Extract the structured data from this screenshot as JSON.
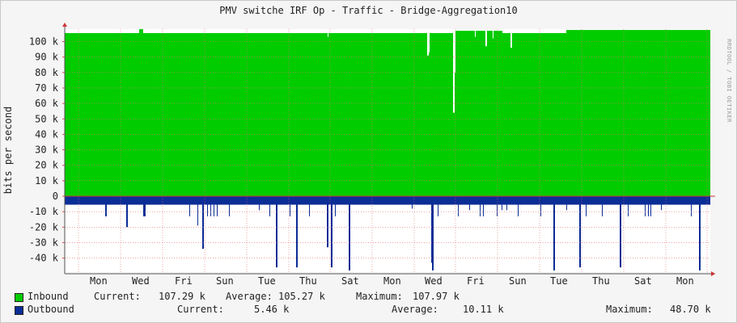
{
  "title": "PMV switche IRF Op - Traffic - Bridge-Aggregation10",
  "watermark": "RRDTOOL / TOBI OETIKER",
  "colors": {
    "inbound": "#00cc00",
    "outbound": "#0b2d96",
    "grid": "#e07070",
    "background": "#f5f5f5",
    "plot_bg": "#ffffff"
  },
  "legend": {
    "inbound": {
      "label": "Inbound",
      "current_label": "Current:",
      "current": "107.29 k",
      "average_label": "Average:",
      "average": "105.27 k",
      "maximum_label": "Maximum:",
      "maximum": "107.97 k"
    },
    "outbound": {
      "label": "Outbound",
      "current_label": "Current:",
      "current": "5.46 k",
      "average_label": "Average:",
      "average": "10.11 k",
      "maximum_label": "Maximum:",
      "maximum": "48.70 k"
    }
  },
  "chart_data": {
    "type": "area",
    "title": "PMV switche IRF Op - Traffic - Bridge-Aggregation10",
    "ylabel": "bits per second",
    "ylim": [
      -48,
      108
    ],
    "yticks": [
      -40,
      -30,
      -20,
      -10,
      0,
      10,
      20,
      30,
      40,
      50,
      60,
      70,
      80,
      90,
      100
    ],
    "ytick_labels": [
      "-40 k",
      "-30 k",
      "-20 k",
      "-10 k",
      "0",
      "10 k",
      "20 k",
      "30 k",
      "40 k",
      "50 k",
      "60 k",
      "70 k",
      "80 k",
      "90 k",
      "100 k"
    ],
    "xtick_labels": [
      "Mon",
      "Wed",
      "Fri",
      "Sun",
      "Tue",
      "Thu",
      "Sat",
      "Mon",
      "Wed",
      "Fri",
      "Sun",
      "Tue",
      "Thu",
      "Sat",
      "Mon"
    ],
    "grid": true,
    "series": [
      {
        "name": "Inbound",
        "values": [
          105.5,
          105.5,
          105.5,
          105.5,
          105.5,
          105.5,
          105.5,
          105.5,
          105.5,
          105.5,
          105.5,
          105.5,
          105.5,
          105.5,
          105.5,
          105.5,
          105.5,
          105.5,
          105.5,
          105.5,
          105.5,
          105.5,
          105.5,
          105.5,
          105.5,
          105.5,
          105.5,
          105.5,
          105.5,
          105.5,
          105.5,
          105.5,
          105.5,
          105.5,
          105.5,
          105.5,
          105.5,
          105.5,
          105.5,
          105.5,
          105.5,
          105.5,
          105.5,
          105.5,
          105.5,
          105.5,
          105.5,
          105.5,
          105.5,
          105.5,
          105.5,
          105.5,
          105.5,
          105.5,
          105.5,
          105.5,
          105.5,
          105.5,
          105.5,
          105.5,
          105.5,
          105.5,
          105.5,
          105.5,
          105.5,
          105.5,
          105.5,
          105.5,
          105.5,
          105.5,
          105.5,
          105.5,
          105.5,
          105.5,
          105.5,
          105.5,
          105.5,
          105.5,
          105.5,
          105.5,
          105.5,
          105.5,
          105.5,
          105.5,
          105.5,
          105.5,
          105.5,
          105.5,
          105.5,
          105.5,
          105.5,
          105.5,
          105.5,
          105.5,
          105.5,
          105.5,
          105.5,
          105.5,
          105.5,
          105.5,
          105.5,
          105.5,
          105.5,
          105.5,
          105.5,
          105.5,
          105.5,
          105.5,
          105.5,
          105.5,
          105.5,
          105.5,
          105.5,
          105.5,
          105.5,
          105.5,
          105.5,
          105.5,
          105.5,
          105.5,
          105.5,
          105.5,
          105.5,
          105.5,
          105.5,
          105.5,
          105.5,
          105.5,
          105.5,
          105.5,
          105.5,
          105.5,
          105.5,
          105.5,
          105.5,
          105.5,
          105.5,
          105.5,
          105.5,
          105.5,
          105.5,
          105.5,
          105.5,
          105.5,
          105.5,
          105.5,
          105.5,
          105.5,
          105.5,
          105.5,
          105.5,
          105.5,
          105.5,
          105.5,
          105.5,
          105.5,
          105.5,
          105.5,
          105.5,
          105.5,
          105.5,
          105.5,
          105.5,
          105.5,
          105.5,
          105.5,
          105.5,
          105.5,
          105.5,
          105.5,
          105.5,
          105.5,
          105.5,
          105.5,
          105.5,
          105.5,
          105.5,
          105.5,
          105.5,
          105.5,
          105.5,
          105.5,
          105.5,
          105.5,
          105.5,
          105.5,
          105.5,
          105.5,
          105.5,
          105.5,
          105.5,
          105.5,
          105.5,
          105.5,
          105.5,
          105.5,
          105.5,
          105.5,
          105.5,
          105.5,
          105.5,
          105.5,
          105.5,
          105.5,
          105.5,
          105.5,
          105.5,
          105.5,
          105.5,
          105.5,
          105.5,
          105.5,
          105.5,
          105.5,
          105.5,
          105.5,
          105.5,
          105.5,
          105.5,
          105.5,
          105.5,
          105.5,
          105.5,
          105.5,
          105.5,
          105.5,
          105.5,
          105.5,
          105.5,
          105.5,
          105.5,
          105.5,
          105.5,
          105.5,
          105.5,
          105.5,
          105.5,
          105.5,
          105.5,
          105.5,
          105.5,
          105.5,
          105.5,
          105.5,
          105.5,
          105.5,
          105.5,
          105.5,
          105.5,
          105.5,
          105.5,
          105.5,
          105.5,
          105.5,
          105.5,
          105.5,
          105.5,
          105.5,
          105.5,
          105.5,
          105.5,
          105.5,
          105.5,
          105.5,
          105.5,
          105.5,
          105.5,
          105.5,
          105.5,
          105.5,
          105.5,
          105.5,
          105.5,
          105.5,
          105.5,
          105.5,
          105.5,
          105.5,
          105.5,
          105.5,
          105.5,
          105.5,
          105.5,
          105.5,
          105.5,
          105.5,
          105.5,
          105.5,
          105.5,
          105.5,
          105.5,
          105.5,
          105.5,
          105.5,
          105.5,
          105.5,
          105.5,
          105.5,
          105.5,
          105.5,
          105.5,
          105.5,
          105.5,
          105.5,
          105.5,
          105.5,
          105.5,
          105.5,
          105.5,
          105.5,
          105.5,
          105.5,
          105.5,
          105.5,
          105.5,
          105.5,
          105.5,
          105.5,
          105.5,
          105.5,
          105.5,
          105.5,
          105.5,
          105.5,
          105.5,
          105.5,
          105.5,
          105.5,
          105.5,
          105.5,
          105.5,
          105.5,
          105.5,
          105.5,
          105.5,
          105.5,
          105.5,
          105.5,
          105.5,
          105.5,
          105.5,
          105.5,
          105.5,
          105.5,
          105.5,
          105.5,
          105.5,
          105.5,
          105.5,
          105.5,
          105.5,
          105.5,
          105.5,
          105.5,
          105.5,
          105.5,
          105.5,
          105.5,
          105.5,
          105.5,
          105.5,
          105.5,
          105.5,
          105.5,
          105.5,
          105.5,
          105.5,
          105.5,
          105.5,
          105.5,
          105.5,
          105.5,
          105.5,
          105.5,
          105.5,
          105.5,
          105.5,
          105.5,
          105.5,
          105.5,
          105.5,
          105.5,
          105.5,
          105.5,
          105.5,
          105.5,
          105.5,
          105.5,
          105.5,
          105.5,
          105.5,
          105.5,
          105.5,
          105.5,
          105.5,
          105.5,
          105.5,
          105.5,
          105.5,
          105.5,
          105.5,
          105.5,
          105.5,
          105.5,
          105.5,
          105.5,
          105.5,
          105.5,
          105.5,
          105.5,
          105.5,
          105.5,
          105.5,
          105.5,
          105.5,
          105.5,
          105.5,
          105.5,
          105.5,
          105.5,
          105.5,
          105.5,
          105.5,
          105.5,
          105.5,
          105.5,
          105.5,
          105.5,
          105.5,
          105.5,
          105.5,
          105.5,
          105.5,
          105.5,
          105.5,
          105.5,
          105.5,
          105.5,
          105.5,
          105.5,
          105.5,
          105.5,
          105.5,
          105.5,
          105.5,
          105.5,
          105.5,
          105.5,
          105.5,
          105.5,
          105.5,
          105.5,
          105.5,
          105.5,
          105.5,
          105.5,
          105.5,
          105.5,
          105.5,
          105.5,
          105.5,
          105.5,
          105.5,
          105.5,
          105.5,
          105.5,
          105.5,
          105.5,
          105.5,
          105.5,
          105.5,
          105.5,
          105.5,
          105.5,
          105.5,
          105.5,
          105.5,
          105.5,
          105.5,
          105.5,
          105.5,
          105.5,
          105.5,
          105.5,
          105.5,
          105.5,
          105.5,
          105.5,
          105.5,
          105.5,
          105.5,
          105.5,
          105.5,
          105.5,
          105.5,
          105.5,
          105.5,
          105.5,
          105.5,
          105.5,
          105.5,
          105.5,
          105.5,
          105.5,
          105.5,
          105.5,
          105.5,
          105.5,
          105.5,
          105.5,
          105.5,
          105.5,
          105.5,
          105.5,
          105.5,
          105.5,
          105.5,
          105.5,
          105.5,
          105.5,
          105.5,
          105.5,
          105.5,
          105.5,
          105.5,
          105.5,
          105.5,
          105.5,
          105.5,
          105.5,
          105.5,
          105.5,
          105.5,
          105.5,
          105.5,
          105.5,
          105.5,
          105.5,
          105.5,
          105.5,
          105.5,
          105.5,
          105.5,
          105.5,
          105.5,
          105.5,
          105.5,
          105.5,
          105.5,
          105.5,
          105.5,
          105.5,
          105.5,
          105.5,
          105.5,
          105.5,
          105.5,
          105.5,
          105.5,
          105.5,
          105.5,
          105.5,
          105.5,
          105.5,
          105.5,
          105.5,
          105.5,
          105.5,
          105.5,
          105.5,
          105.5,
          105.5,
          105.5,
          105.5,
          105.5,
          105.5,
          105.5,
          105.5,
          105.5,
          105.5,
          105.5,
          105.5,
          105.5,
          105.5,
          105.5,
          105.5,
          105.5,
          105.5,
          105.5,
          105.5,
          105.5,
          105.5,
          105.5,
          105.5,
          105.5,
          105.5,
          105.5,
          105.5,
          105.5,
          105.5,
          105.5,
          105.5,
          105.5,
          105.5,
          105.5,
          105.5,
          105.5,
          105.5,
          105.5,
          105.5,
          105.5,
          105.5,
          105.5,
          105.5,
          105.5,
          105.5,
          105.5,
          105.5,
          105.5,
          105.5,
          105.5,
          105.5,
          105.5,
          105.5,
          105.5,
          105.5,
          105.5,
          105.5,
          105.5,
          105.5,
          105.5,
          105.5,
          105.5,
          105.5,
          105.5,
          105.5,
          105.5,
          105.5,
          105.5,
          105.5,
          105.5,
          105.5,
          105.5,
          105.5,
          105.5,
          105.5,
          105.5,
          105.5,
          105.5,
          105.5,
          105.5,
          105.5,
          105.5,
          105.5,
          105.5,
          105.5,
          105.5,
          105.5,
          105.5,
          105.5,
          105.5,
          105.5,
          105.5,
          105.5,
          105.5,
          105.5,
          105.5,
          105.5,
          105.5,
          105.5,
          105.5,
          105.5,
          105.5,
          105.5,
          105.5,
          105.5,
          105.5,
          105.5,
          105.5,
          105.5,
          105.5,
          105.5,
          105.5,
          105.5,
          105.5,
          105.5,
          105.5,
          105.5,
          105.5,
          105.5,
          105.5,
          105.5,
          105.5,
          105.5,
          105.5,
          105.5,
          105.5,
          105.5,
          105.5,
          105.5,
          105.5,
          105.5,
          105.5,
          105.5,
          105.5,
          105.5,
          105.5,
          105.5,
          105.5,
          105.5,
          105.5,
          105.5,
          105.5,
          105.5,
          105.5,
          105.5,
          105.5,
          105.5,
          105.5,
          105.5,
          105.5,
          105.5,
          105.5,
          105.5,
          105.5,
          105.5,
          105.5,
          105.5,
          105.5,
          105.5,
          105.5,
          105.5,
          105.5,
          105.5,
          105.5,
          105.5,
          105.5,
          105.5,
          105.5,
          105.5,
          105.5,
          105.5,
          105.5,
          105.5,
          105.5,
          105.5,
          105.5,
          105.5,
          105.5,
          105.5,
          105.5,
          105.5,
          105.5,
          105.5,
          105.5,
          105.5,
          105.5,
          105.5,
          105.5,
          105.5,
          105.5,
          105.5,
          105.5,
          105.5,
          105.5,
          105.5,
          105.5,
          105.5,
          105.5,
          105.5,
          105.5,
          105.5,
          105.5,
          105.5,
          105.5,
          105.5,
          105.5,
          105.5,
          105.5,
          105.5,
          105.5,
          105.5,
          105.5,
          105.5,
          105.5,
          105.5,
          105.5,
          105.5,
          105.5,
          105.5,
          105.5,
          105.5,
          105.5,
          105.5,
          105.5,
          105.5,
          105.5,
          105.5,
          105.5,
          105.5,
          105.5,
          105.5,
          105.5,
          105.5,
          105.5,
          105.5,
          105.5,
          105.5,
          105.5,
          105.5,
          105.5,
          105.5,
          105.5,
          105.5,
          105.5,
          105.5,
          105.5,
          105.5,
          105.5,
          105.5,
          105.5,
          105.5,
          105.5,
          105.5,
          105.5,
          105.5,
          105.5,
          105.5,
          105.5,
          105.5,
          105.5,
          105.5,
          105.5,
          105.5,
          105.5,
          105.5,
          105.5,
          105.5,
          105.5,
          105.5,
          105.5,
          105.5,
          105.5,
          105.5,
          105.5,
          105.5,
          105.5,
          105.5,
          105.5,
          105.5,
          105.5,
          105.5,
          105.5,
          105.5,
          105.5,
          105.5,
          105.5,
          105.5,
          105.5,
          105.5,
          105.5,
          105.5,
          105.5,
          105.5,
          105.5,
          105.5,
          105.5,
          105.5,
          105.5,
          105.5,
          105.5,
          105.5,
          105.5,
          105.5,
          105.5,
          105.5,
          105.5,
          105.5,
          105.5,
          105.5,
          105.5,
          105.5,
          105.5,
          105.5,
          105.5,
          105.5,
          105.5,
          105.5,
          105.5,
          105.5,
          105.5,
          105.5,
          105.5,
          105.5,
          105.5,
          105.5,
          105.5,
          105.5,
          105.5,
          105.5,
          105.5,
          105.5,
          105.5,
          105.5,
          105.5,
          105.5,
          105.5,
          105.5,
          105.5,
          105.5,
          105.5,
          105.5,
          105.5,
          105.5,
          105.5,
          105.5,
          105.5,
          105.5,
          105.5,
          105.5,
          105.5,
          105.5,
          105.5,
          105.5,
          105.5,
          105.5,
          105.5,
          105.5,
          105.5,
          105.5,
          105.5,
          105.5,
          105.5,
          105.5,
          105.5,
          105.5,
          105.5,
          105.5
        ]
      },
      {
        "name": "Outbound",
        "values": [
          5.5
        ]
      }
    ]
  }
}
